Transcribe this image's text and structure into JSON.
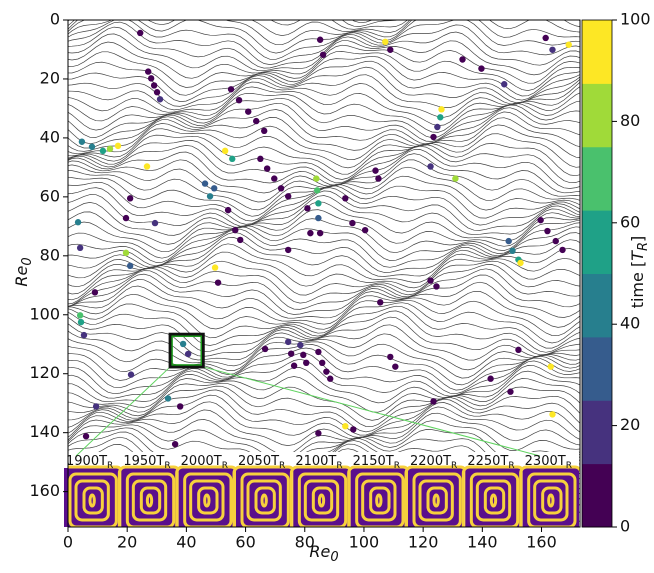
{
  "chart_data": {
    "type": "scatter",
    "xlabel": {
      "text": "Re",
      "sub": "0"
    },
    "ylabel": {
      "text": "Re",
      "sub": "0"
    },
    "xlim": [
      0,
      173
    ],
    "ylim": [
      0,
      172
    ],
    "y_inverted": true,
    "xticks": [
      0,
      20,
      40,
      60,
      80,
      100,
      120,
      140,
      160
    ],
    "yticks": [
      0,
      20,
      40,
      60,
      80,
      100,
      120,
      140,
      160
    ],
    "x": [
      24.4,
      27.1,
      28.1,
      29.1,
      30.1,
      31.1,
      55.1,
      57.8,
      60.9,
      63.6,
      66.3,
      85.2,
      86.2,
      107.2,
      108.9,
      133.3,
      139.7,
      147.4,
      161.4,
      163.7,
      169.2,
      4.7,
      8.1,
      11.8,
      14.2,
      16.9,
      26.7,
      65,
      67.3,
      69.7,
      72,
      74.4,
      53.1,
      55.5,
      46.3,
      49.4,
      48.0,
      83.9,
      84.2,
      84.6,
      84.6,
      85.2,
      80.9,
      81.9,
      93.7,
      96.1,
      54.1,
      21,
      19.6,
      3.4,
      4.1,
      19.6,
      21,
      29.4,
      49.7,
      50.7,
      4.1,
      4.4,
      5.4,
      9.1,
      21.3,
      9.5,
      33.8,
      37.9,
      74.4,
      75.4,
      76.4,
      78.5,
      79.5,
      80.5,
      84.6,
      85.9,
      87.3,
      88.6,
      66.6,
      84.6,
      93.7,
      96.4,
      105.5,
      108.9,
      110.6,
      122.5,
      124.5,
      126.2,
      125.8,
      124.8,
      123.5,
      130.9,
      122.5,
      103.9,
      104.9,
      148.9,
      150.2,
      152.2,
      159.7,
      162,
      164.8,
      167.1,
      152.9,
      163.1,
      163.7,
      149.5,
      123.5,
      152.2,
      142.8,
      100.4,
      74.4,
      56.5,
      58.2,
      38.9,
      40.6,
      36.2,
      6.1
    ],
    "y": [
      4.4,
      17.5,
      19.8,
      22.2,
      24.5,
      26.9,
      23.5,
      27.2,
      31.1,
      34.3,
      37.6,
      6.7,
      11.8,
      7.4,
      10.1,
      13.4,
      16.5,
      21.8,
      6.1,
      10.1,
      8.4,
      41.3,
      43,
      44.4,
      43.7,
      42.7,
      49.7,
      47.1,
      50.4,
      53.8,
      57.1,
      59.8,
      44.4,
      47.1,
      55.5,
      57.1,
      59.8,
      53.8,
      57.8,
      62.2,
      67.2,
      72.3,
      63.9,
      72.3,
      60.5,
      68.9,
      64.5,
      60.5,
      67.2,
      68.6,
      77.3,
      79,
      83.4,
      68.9,
      84,
      89.1,
      100.2,
      102.5,
      106.9,
      92.4,
      120.3,
      131.1,
      128.4,
      131.1,
      109.2,
      113.2,
      117.3,
      110.3,
      113.6,
      116.3,
      112.6,
      116.3,
      119.3,
      121.7,
      111.6,
      140.2,
      137.8,
      138.9,
      95.8,
      114.3,
      117.6,
      88.4,
      90.4,
      30.3,
      33,
      36.3,
      39.7,
      53.8,
      49.7,
      51.1,
      53.8,
      75,
      78.3,
      81.3,
      67.9,
      71.6,
      75,
      78,
      82.4,
      117.6,
      133.8,
      126.1,
      129.4,
      111.9,
      121.7,
      71.3,
      78,
      71.3,
      74.6,
      109.9,
      113.3,
      143.9,
      141.2
    ],
    "time": [
      0,
      0,
      0,
      0,
      5,
      15,
      0,
      0,
      0,
      0,
      0,
      0,
      10,
      95,
      10,
      0,
      5,
      20,
      0,
      20,
      95,
      40,
      45,
      55,
      80,
      95,
      95,
      0,
      0,
      0,
      0,
      0,
      90,
      60,
      30,
      35,
      40,
      85,
      70,
      50,
      30,
      10,
      0,
      0,
      0,
      0,
      0,
      5,
      0,
      40,
      20,
      80,
      30,
      20,
      90,
      10,
      70,
      50,
      20,
      10,
      20,
      20,
      40,
      10,
      20,
      10,
      0,
      20,
      10,
      0,
      5,
      0,
      0,
      0,
      0,
      0,
      90,
      0,
      0,
      0,
      0,
      0,
      0,
      95,
      50,
      20,
      0,
      80,
      20,
      0,
      0,
      30,
      45,
      60,
      0,
      0,
      0,
      0,
      90,
      95,
      95,
      10,
      0,
      0,
      0,
      10,
      0,
      0,
      0,
      40,
      20,
      0,
      0
    ],
    "colorbar": {
      "clim": [
        0,
        100
      ],
      "ticks": [
        0,
        20,
        40,
        60,
        80,
        100
      ],
      "colors": [
        "#440154",
        "#46327e",
        "#365c8d",
        "#277f8e",
        "#1fa187",
        "#4ac16d",
        "#a0da39",
        "#fde725"
      ],
      "label": {
        "before": "time [",
        "var": "T",
        "sub": "R",
        "after": "]"
      }
    },
    "inset": {
      "box_x": [
        34.5,
        45.7
      ],
      "box_y": [
        106.6,
        117.7
      ],
      "labels": [
        "1900T",
        "1950T",
        "2000T",
        "2050T",
        "2100T",
        "2150T",
        "2200T",
        "2250T",
        "2300T"
      ],
      "subscript": "R"
    }
  }
}
